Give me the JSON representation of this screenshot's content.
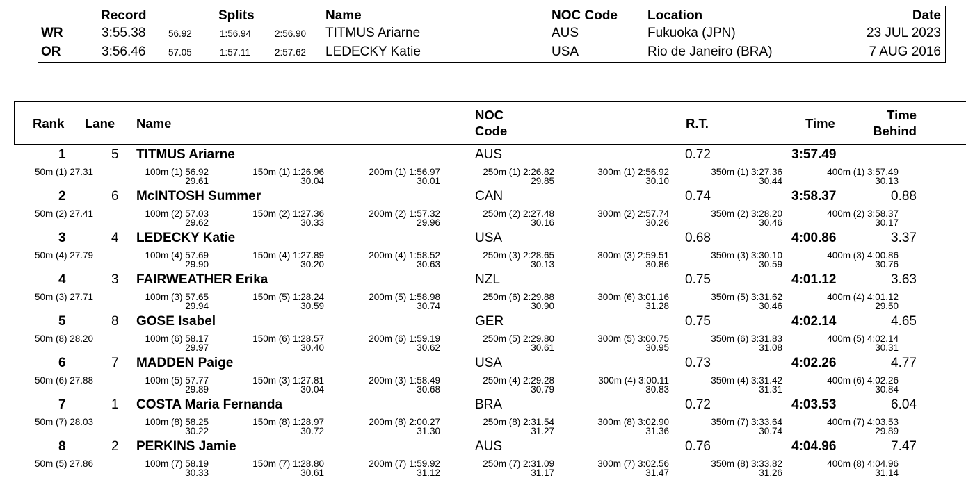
{
  "records": {
    "headers": {
      "record": "Record",
      "splits": "Splits",
      "name": "Name",
      "noc": "NOC Code",
      "location": "Location",
      "date": "Date"
    },
    "rows": [
      {
        "type": "WR",
        "time": "3:55.38",
        "s1": "56.92",
        "s2": "1:56.94",
        "s3": "2:56.90",
        "name": "TITMUS Ariarne",
        "noc": "AUS",
        "location": "Fukuoka (JPN)",
        "date": "23 JUL 2023"
      },
      {
        "type": "OR",
        "time": "3:56.46",
        "s1": "57.05",
        "s2": "1:57.11",
        "s3": "2:57.62",
        "name": "LEDECKY Katie",
        "noc": "USA",
        "location": "Rio de Janeiro (BRA)",
        "date": "7 AUG 2016"
      }
    ]
  },
  "results": {
    "headers": {
      "rank": "Rank",
      "lane": "Lane",
      "name": "Name",
      "noc_1": "NOC",
      "noc_2": "Code",
      "rt": "R.T.",
      "time": "Time",
      "behind_1": "Time",
      "behind_2": "Behind"
    },
    "athletes": [
      {
        "rank": "1",
        "lane": "5",
        "name": "TITMUS Ariarne",
        "noc": "AUS",
        "rt": "0.72",
        "time": "3:57.49",
        "behind": "",
        "splits": [
          "50m (1) 27.31",
          "100m (1) 56.92",
          "150m (1) 1:26.96",
          "200m (1) 1:56.97",
          "250m (1) 2:26.82",
          "300m (1) 2:56.92",
          "350m (1) 3:27.36",
          "400m (1) 3:57.49"
        ],
        "laps": [
          "29.61",
          "30.04",
          "30.01",
          "29.85",
          "30.10",
          "30.44",
          "30.13"
        ]
      },
      {
        "rank": "2",
        "lane": "6",
        "name": "McINTOSH Summer",
        "noc": "CAN",
        "rt": "0.74",
        "time": "3:58.37",
        "behind": "0.88",
        "splits": [
          "50m (2) 27.41",
          "100m (2) 57.03",
          "150m (2) 1:27.36",
          "200m (2) 1:57.32",
          "250m (2) 2:27.48",
          "300m (2) 2:57.74",
          "350m (2) 3:28.20",
          "400m (2) 3:58.37"
        ],
        "laps": [
          "29.62",
          "30.33",
          "29.96",
          "30.16",
          "30.26",
          "30.46",
          "30.17"
        ]
      },
      {
        "rank": "3",
        "lane": "4",
        "name": "LEDECKY Katie",
        "noc": "USA",
        "rt": "0.68",
        "time": "4:00.86",
        "behind": "3.37",
        "splits": [
          "50m (4) 27.79",
          "100m (4) 57.69",
          "150m (4) 1:27.89",
          "200m (4) 1:58.52",
          "250m (3) 2:28.65",
          "300m (3) 2:59.51",
          "350m (3) 3:30.10",
          "400m (3) 4:00.86"
        ],
        "laps": [
          "29.90",
          "30.20",
          "30.63",
          "30.13",
          "30.86",
          "30.59",
          "30.76"
        ]
      },
      {
        "rank": "4",
        "lane": "3",
        "name": "FAIRWEATHER Erika",
        "noc": "NZL",
        "rt": "0.75",
        "time": "4:01.12",
        "behind": "3.63",
        "splits": [
          "50m (3) 27.71",
          "100m (3) 57.65",
          "150m (5) 1:28.24",
          "200m (5) 1:58.98",
          "250m (6) 2:29.88",
          "300m (6) 3:01.16",
          "350m (5) 3:31.62",
          "400m (4) 4:01.12"
        ],
        "laps": [
          "29.94",
          "30.59",
          "30.74",
          "30.90",
          "31.28",
          "30.46",
          "29.50"
        ]
      },
      {
        "rank": "5",
        "lane": "8",
        "name": "GOSE Isabel",
        "noc": "GER",
        "rt": "0.75",
        "time": "4:02.14",
        "behind": "4.65",
        "splits": [
          "50m (8) 28.20",
          "100m (6) 58.17",
          "150m (6) 1:28.57",
          "200m (6) 1:59.19",
          "250m (5) 2:29.80",
          "300m (5) 3:00.75",
          "350m (6) 3:31.83",
          "400m (5) 4:02.14"
        ],
        "laps": [
          "29.97",
          "30.40",
          "30.62",
          "30.61",
          "30.95",
          "31.08",
          "30.31"
        ]
      },
      {
        "rank": "6",
        "lane": "7",
        "name": "MADDEN Paige",
        "noc": "USA",
        "rt": "0.73",
        "time": "4:02.26",
        "behind": "4.77",
        "splits": [
          "50m (6) 27.88",
          "100m (5) 57.77",
          "150m (3) 1:27.81",
          "200m (3) 1:58.49",
          "250m (4) 2:29.28",
          "300m (4) 3:00.11",
          "350m (4) 3:31.42",
          "400m (6) 4:02.26"
        ],
        "laps": [
          "29.89",
          "30.04",
          "30.68",
          "30.79",
          "30.83",
          "31.31",
          "30.84"
        ]
      },
      {
        "rank": "7",
        "lane": "1",
        "name": "COSTA Maria Fernanda",
        "noc": "BRA",
        "rt": "0.72",
        "time": "4:03.53",
        "behind": "6.04",
        "splits": [
          "50m (7) 28.03",
          "100m (8) 58.25",
          "150m (8) 1:28.97",
          "200m (8) 2:00.27",
          "250m (8) 2:31.54",
          "300m (8) 3:02.90",
          "350m (7) 3:33.64",
          "400m (7) 4:03.53"
        ],
        "laps": [
          "30.22",
          "30.72",
          "31.30",
          "31.27",
          "31.36",
          "30.74",
          "29.89"
        ]
      },
      {
        "rank": "8",
        "lane": "2",
        "name": "PERKINS Jamie",
        "noc": "AUS",
        "rt": "0.76",
        "time": "4:04.96",
        "behind": "7.47",
        "splits": [
          "50m (5) 27.86",
          "100m (7) 58.19",
          "150m (7) 1:28.80",
          "200m (7) 1:59.92",
          "250m (7) 2:31.09",
          "300m (7) 3:02.56",
          "350m (8) 3:33.82",
          "400m (8) 4:04.96"
        ],
        "laps": [
          "30.33",
          "30.61",
          "31.12",
          "31.17",
          "31.47",
          "31.26",
          "31.14"
        ]
      }
    ]
  }
}
